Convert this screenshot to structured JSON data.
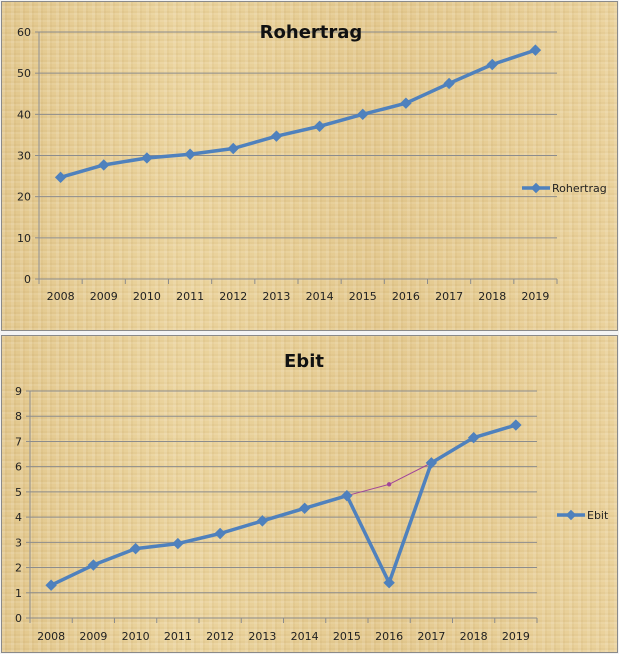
{
  "chart_data": [
    {
      "type": "line",
      "title": "Rohertrag",
      "xlabel": "",
      "ylabel": "",
      "categories": [
        "2008",
        "2009",
        "2010",
        "2011",
        "2012",
        "2013",
        "2014",
        "2015",
        "2016",
        "2017",
        "2018",
        "2019"
      ],
      "series": [
        {
          "name": "Rohertrag",
          "color": "#4f81bd",
          "values": [
            24.7,
            27.7,
            29.4,
            30.3,
            31.7,
            34.7,
            37.1,
            40.0,
            42.7,
            47.5,
            52.1,
            55.6
          ]
        }
      ],
      "yticks": [
        0,
        10,
        20,
        30,
        40,
        50,
        60
      ],
      "ylim": [
        0,
        60
      ],
      "grid": true,
      "legend_position": "right"
    },
    {
      "type": "line",
      "title": "Ebit",
      "xlabel": "",
      "ylabel": "",
      "categories": [
        "2008",
        "2009",
        "2010",
        "2011",
        "2012",
        "2013",
        "2014",
        "2015",
        "2016",
        "2017",
        "2018",
        "2019"
      ],
      "series": [
        {
          "name": "Ebit",
          "color": "#4f81bd",
          "values": [
            1.3,
            2.1,
            2.75,
            2.95,
            3.35,
            3.85,
            4.35,
            4.85,
            1.4,
            6.15,
            7.15,
            7.65
          ]
        }
      ],
      "annotations": [
        {
          "type": "line-segment",
          "color": "#a0449a",
          "points": [
            [
              "2015",
              4.85
            ],
            [
              "2016",
              5.3
            ],
            [
              "2017",
              6.15
            ]
          ],
          "note": "unlabeled adjusted value for 2016"
        }
      ],
      "yticks": [
        0,
        1,
        2,
        3,
        4,
        5,
        6,
        7,
        8,
        9
      ],
      "ylim": [
        0,
        9
      ],
      "grid": true,
      "legend_position": "right"
    }
  ]
}
